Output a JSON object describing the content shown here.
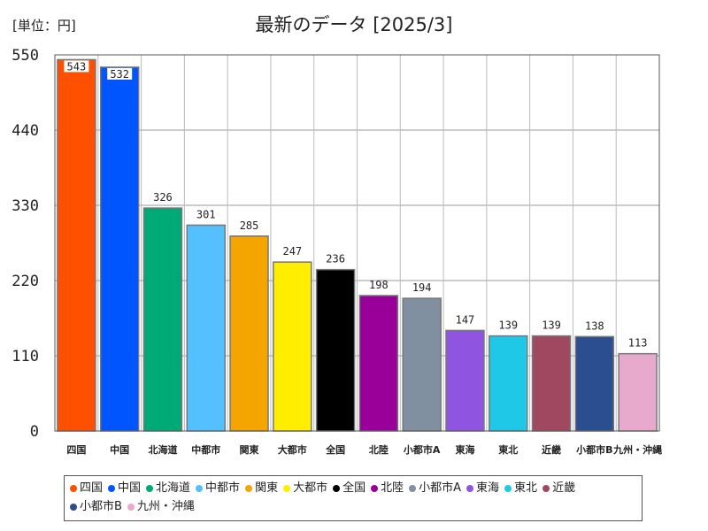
{
  "unit_label": "[単位：円]",
  "chart_data": {
    "type": "bar",
    "title": "最新のデータ [2025/3]",
    "categories": [
      "四国",
      "中国",
      "北海道",
      "中都市",
      "関東",
      "大都市",
      "全国",
      "北陸",
      "小都市A",
      "東海",
      "東北",
      "近畿",
      "小都市B",
      "九州・沖縄"
    ],
    "values": [
      543,
      532,
      326,
      301,
      285,
      247,
      236,
      198,
      194,
      147,
      139,
      139,
      138,
      113
    ],
    "colors": [
      "#FF5000",
      "#0055FF",
      "#00AA77",
      "#55C0FF",
      "#F5A500",
      "#FFEE00",
      "#000000",
      "#990099",
      "#8090A0",
      "#9055E0",
      "#20C8E8",
      "#A04860",
      "#2A4E90",
      "#E8AACC"
    ],
    "y_ticks": [
      0,
      110,
      220,
      330,
      440,
      550
    ],
    "ylim": [
      0,
      550
    ],
    "grid": true,
    "legend": "bottom",
    "legend_labels": [
      "四国",
      "中国",
      "北海道",
      "中都市",
      "関東",
      "大都市",
      "全国",
      "北陸",
      "小都市A",
      "東海",
      "東北",
      "近畿",
      "小都市B",
      "九州・沖縄"
    ]
  }
}
